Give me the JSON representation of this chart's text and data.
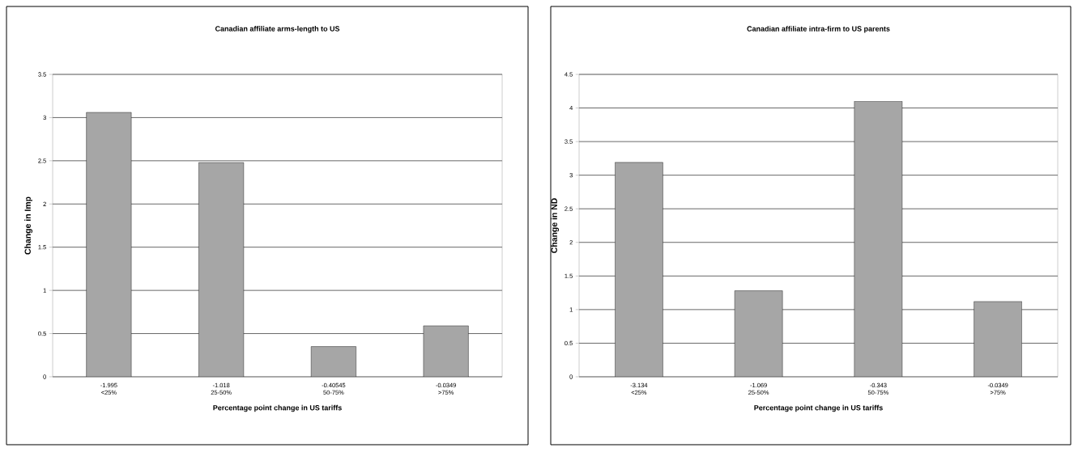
{
  "chart_data": [
    {
      "type": "bar",
      "title": "Canadian affiliate arms-length to US",
      "xlabel": "Percentage point change in US tariffs",
      "ylabel": "Change in Imp",
      "categories": [
        "-1.995 <25%",
        "-1.018 25-50%",
        "-0.40545 50-75%",
        "-0.0349 >75%"
      ],
      "values": [
        3.06,
        2.48,
        0.35,
        0.59
      ],
      "color": "#a6a6a6",
      "ylim": [
        0,
        3.5
      ],
      "yticks": [
        0,
        0.5,
        1,
        1.5,
        2,
        2.5,
        3,
        3.5
      ],
      "grid": "y"
    },
    {
      "type": "bar",
      "title": "Canadian affiliate intra-firm to US parents",
      "xlabel": "Percentage point change in US tariffs",
      "ylabel": "Change in ND",
      "categories": [
        "-3.134 <25%",
        "-1.069 25-50%",
        "-0.343 50-75%",
        "-0.0349 >75%"
      ],
      "values": [
        3.19,
        1.28,
        4.1,
        1.12
      ],
      "color": "#a6a6a6",
      "ylim": [
        0,
        4.5
      ],
      "yticks": [
        0,
        0.5,
        1,
        1.5,
        2,
        2.5,
        3,
        3.5,
        4,
        4.5
      ],
      "grid": "y"
    }
  ]
}
